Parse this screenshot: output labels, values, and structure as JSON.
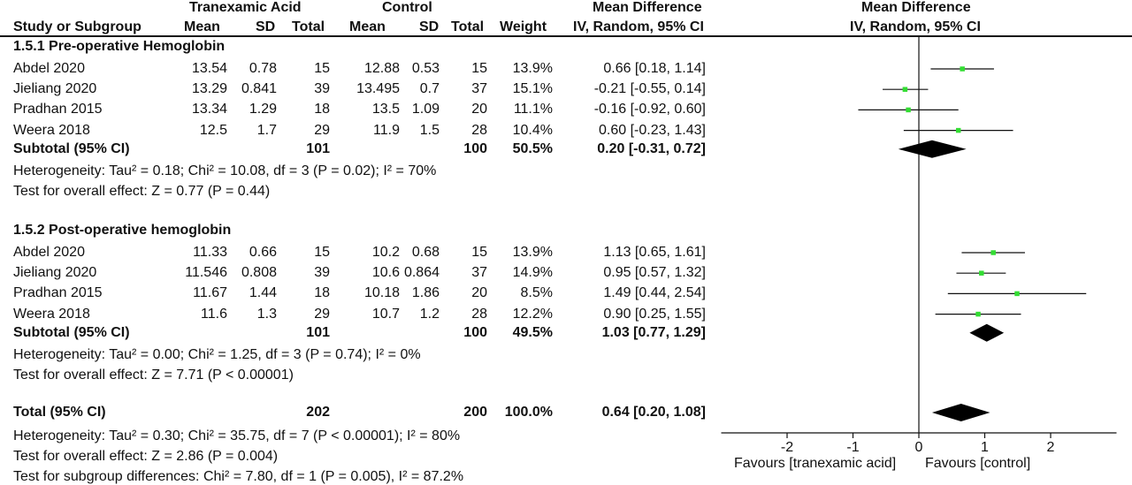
{
  "header": {
    "group_tx": "Tranexamic Acid",
    "group_ctrl": "Control",
    "md_title": "Mean Difference",
    "plot_title": "Mean Difference",
    "col_study": "Study or Subgroup",
    "col_mean": "Mean",
    "col_sd": "SD",
    "col_total": "Total",
    "col_weight": "Weight",
    "col_method": "IV, Random, 95% CI",
    "plot_method": "IV, Random, 95% CI"
  },
  "subgroups": [
    {
      "title": "1.5.1 Pre-operative Hemoglobin",
      "studies": [
        {
          "name": "Abdel 2020",
          "tx_mean": "13.54",
          "tx_sd": "0.78",
          "tx_total": "15",
          "c_mean": "12.88",
          "c_sd": "0.53",
          "c_total": "15",
          "weight": "13.9%",
          "ci": "0.66 [0.18, 1.14]"
        },
        {
          "name": "Jieliang 2020",
          "tx_mean": "13.29",
          "tx_sd": "0.841",
          "tx_total": "39",
          "c_mean": "13.495",
          "c_sd": "0.7",
          "c_total": "37",
          "weight": "15.1%",
          "ci": "-0.21 [-0.55, 0.14]"
        },
        {
          "name": "Pradhan 2015",
          "tx_mean": "13.34",
          "tx_sd": "1.29",
          "tx_total": "18",
          "c_mean": "13.5",
          "c_sd": "1.09",
          "c_total": "20",
          "weight": "11.1%",
          "ci": "-0.16 [-0.92, 0.60]"
        },
        {
          "name": "Weera 2018",
          "tx_mean": "12.5",
          "tx_sd": "1.7",
          "tx_total": "29",
          "c_mean": "11.9",
          "c_sd": "1.5",
          "c_total": "28",
          "weight": "10.4%",
          "ci": "0.60 [-0.23, 1.43]"
        }
      ],
      "subtotal": {
        "label": "Subtotal (95% CI)",
        "tx_total": "101",
        "c_total": "100",
        "weight": "50.5%",
        "ci": "0.20 [-0.31, 0.72]"
      },
      "heterogeneity": "Heterogeneity: Tau² = 0.18; Chi² = 10.08, df = 3 (P = 0.02); I² = 70%",
      "overall": "Test for overall effect: Z = 0.77 (P = 0.44)"
    },
    {
      "title": "1.5.2 Post-operative hemoglobin",
      "studies": [
        {
          "name": "Abdel 2020",
          "tx_mean": "11.33",
          "tx_sd": "0.66",
          "tx_total": "15",
          "c_mean": "10.2",
          "c_sd": "0.68",
          "c_total": "15",
          "weight": "13.9%",
          "ci": "1.13 [0.65, 1.61]"
        },
        {
          "name": "Jieliang 2020",
          "tx_mean": "11.546",
          "tx_sd": "0.808",
          "tx_total": "39",
          "c_mean": "10.6",
          "c_sd": "0.864",
          "c_total": "37",
          "weight": "14.9%",
          "ci": "0.95 [0.57, 1.32]"
        },
        {
          "name": "Pradhan 2015",
          "tx_mean": "11.67",
          "tx_sd": "1.44",
          "tx_total": "18",
          "c_mean": "10.18",
          "c_sd": "1.86",
          "c_total": "20",
          "weight": "8.5%",
          "ci": "1.49 [0.44, 2.54]"
        },
        {
          "name": "Weera 2018",
          "tx_mean": "11.6",
          "tx_sd": "1.3",
          "tx_total": "29",
          "c_mean": "10.7",
          "c_sd": "1.2",
          "c_total": "28",
          "weight": "12.2%",
          "ci": "0.90 [0.25, 1.55]"
        }
      ],
      "subtotal": {
        "label": "Subtotal (95% CI)",
        "tx_total": "101",
        "c_total": "100",
        "weight": "49.5%",
        "ci": "1.03 [0.77, 1.29]"
      },
      "heterogeneity": "Heterogeneity: Tau² = 0.00; Chi² = 1.25, df = 3 (P = 0.74); I² = 0%",
      "overall": "Test for overall effect: Z = 7.71 (P < 0.00001)"
    }
  ],
  "total": {
    "label": "Total (95% CI)",
    "tx_total": "202",
    "c_total": "200",
    "weight": "100.0%",
    "ci": "0.64 [0.20, 1.08]",
    "heterogeneity": "Heterogeneity: Tau² = 0.30; Chi² = 35.75, df = 7 (P < 0.00001); I² = 80%",
    "overall": "Test for overall effect: Z = 2.86 (P = 0.004)",
    "subgroup_diff": "Test for subgroup differences: Chi² = 7.80, df = 1 (P = 0.005), I² = 87.2%"
  },
  "axis": {
    "favours_left": "Favours [tranexamic acid]",
    "favours_right": "Favours [control]"
  },
  "colors": {
    "point": "#33dd33",
    "line": "#111111",
    "diamond": "#000000"
  },
  "chart_data": {
    "type": "scatter",
    "subtype": "forest-plot",
    "xlim": [
      -3,
      3
    ],
    "ticks": [
      -2,
      -1,
      0,
      1,
      2
    ],
    "studies": [
      {
        "group": "1.5.1 Pre-operative Hemoglobin",
        "name": "Abdel 2020",
        "md": 0.66,
        "lo": 0.18,
        "hi": 1.14,
        "weight": 13.9
      },
      {
        "group": "1.5.1 Pre-operative Hemoglobin",
        "name": "Jieliang 2020",
        "md": -0.21,
        "lo": -0.55,
        "hi": 0.14,
        "weight": 15.1
      },
      {
        "group": "1.5.1 Pre-operative Hemoglobin",
        "name": "Pradhan 2015",
        "md": -0.16,
        "lo": -0.92,
        "hi": 0.6,
        "weight": 11.1
      },
      {
        "group": "1.5.1 Pre-operative Hemoglobin",
        "name": "Weera 2018",
        "md": 0.6,
        "lo": -0.23,
        "hi": 1.43,
        "weight": 10.4
      },
      {
        "group": "1.5.2 Post-operative hemoglobin",
        "name": "Abdel 2020",
        "md": 1.13,
        "lo": 0.65,
        "hi": 1.61,
        "weight": 13.9
      },
      {
        "group": "1.5.2 Post-operative hemoglobin",
        "name": "Jieliang 2020",
        "md": 0.95,
        "lo": 0.57,
        "hi": 1.32,
        "weight": 14.9
      },
      {
        "group": "1.5.2 Post-operative hemoglobin",
        "name": "Pradhan 2015",
        "md": 1.49,
        "lo": 0.44,
        "hi": 2.54,
        "weight": 8.5
      },
      {
        "group": "1.5.2 Post-operative hemoglobin",
        "name": "Weera 2018",
        "md": 0.9,
        "lo": 0.25,
        "hi": 1.55,
        "weight": 12.2
      }
    ],
    "pooled": [
      {
        "name": "Subtotal (95% CI)",
        "group": "1.5.1 Pre-operative Hemoglobin",
        "md": 0.2,
        "lo": -0.31,
        "hi": 0.72
      },
      {
        "name": "Subtotal (95% CI)",
        "group": "1.5.2 Post-operative hemoglobin",
        "md": 1.03,
        "lo": 0.77,
        "hi": 1.29
      },
      {
        "name": "Total (95% CI)",
        "md": 0.64,
        "lo": 0.2,
        "hi": 1.08
      }
    ]
  }
}
